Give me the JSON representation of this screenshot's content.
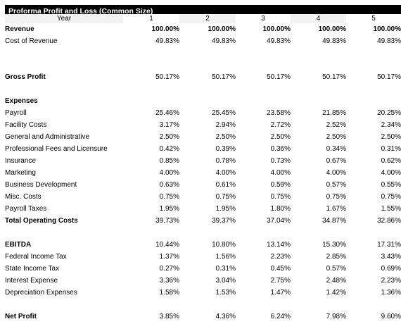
{
  "report": {
    "title": "Proforma Profit and Loss (Common Size)",
    "year_label": "Year",
    "years": [
      "1",
      "2",
      "3",
      "4",
      "5"
    ]
  },
  "revenue": {
    "label": "Revenue",
    "values": [
      "100.00%",
      "100.00%",
      "100.00%",
      "100.00%",
      "100.00%"
    ]
  },
  "cost_of_revenue": {
    "label": "Cost of Revenue",
    "values": [
      "49.83%",
      "49.83%",
      "49.83%",
      "49.83%",
      "49.83%"
    ]
  },
  "gross_profit": {
    "label": "Gross Profit",
    "values": [
      "50.17%",
      "50.17%",
      "50.17%",
      "50.17%",
      "50.17%"
    ]
  },
  "expenses": {
    "label": "Expenses",
    "rows": [
      {
        "label": "Payroll",
        "values": [
          "25.46%",
          "25.45%",
          "23.58%",
          "21.85%",
          "20.25%"
        ]
      },
      {
        "label": "Facility Costs",
        "values": [
          "3.17%",
          "2.94%",
          "2.72%",
          "2.52%",
          "2.34%"
        ]
      },
      {
        "label": "General and Administrative",
        "values": [
          "2.50%",
          "2.50%",
          "2.50%",
          "2.50%",
          "2.50%"
        ]
      },
      {
        "label": "Professional Fees and Licensure",
        "values": [
          "0.42%",
          "0.39%",
          "0.36%",
          "0.34%",
          "0.31%"
        ]
      },
      {
        "label": "Insurance",
        "values": [
          "0.85%",
          "0.78%",
          "0.73%",
          "0.67%",
          "0.62%"
        ]
      },
      {
        "label": "Marketing",
        "values": [
          "4.00%",
          "4.00%",
          "4.00%",
          "4.00%",
          "4.00%"
        ]
      },
      {
        "label": "Business Development",
        "values": [
          "0.63%",
          "0.61%",
          "0.59%",
          "0.57%",
          "0.55%"
        ]
      },
      {
        "label": "Misc. Costs",
        "values": [
          "0.75%",
          "0.75%",
          "0.75%",
          "0.75%",
          "0.75%"
        ]
      },
      {
        "label": "Payroll Taxes",
        "values": [
          "1.95%",
          "1.95%",
          "1.80%",
          "1.67%",
          "1.55%"
        ]
      }
    ]
  },
  "total_operating_costs": {
    "label": "Total Operating Costs",
    "values": [
      "39.73%",
      "39.37%",
      "37.04%",
      "34.87%",
      "32.86%"
    ]
  },
  "ebitda": {
    "label": "EBITDA",
    "values": [
      "10.44%",
      "10.80%",
      "13.14%",
      "15.30%",
      "17.31%"
    ]
  },
  "below_ebitda": [
    {
      "label": "Federal Income Tax",
      "values": [
        "1.37%",
        "1.56%",
        "2.23%",
        "2.85%",
        "3.43%"
      ]
    },
    {
      "label": "State Income Tax",
      "values": [
        "0.27%",
        "0.31%",
        "0.45%",
        "0.57%",
        "0.69%"
      ]
    },
    {
      "label": "Interest Expense",
      "values": [
        "3.36%",
        "3.04%",
        "2.75%",
        "2.48%",
        "2.23%"
      ]
    },
    {
      "label": "Depreciation Expenses",
      "values": [
        "1.58%",
        "1.53%",
        "1.47%",
        "1.42%",
        "1.36%"
      ]
    }
  ],
  "net_profit": {
    "label": "Net Profit",
    "values": [
      "3.85%",
      "4.36%",
      "6.24%",
      "7.98%",
      "9.60%"
    ]
  }
}
